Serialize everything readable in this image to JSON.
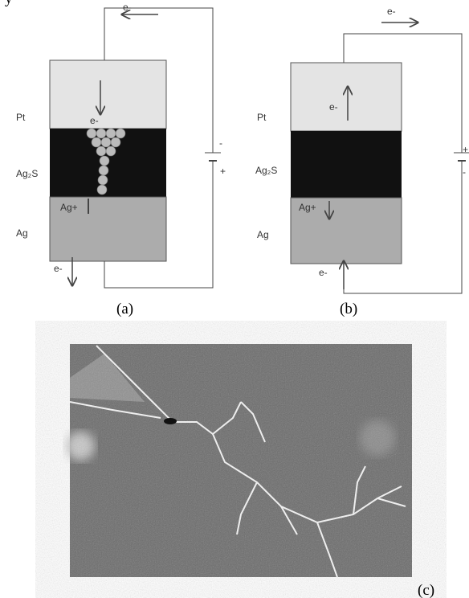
{
  "header_fragment": "y",
  "panels": [
    {
      "label": "(a)",
      "layers": [
        "Pt",
        "Ag₂S",
        "Ag"
      ],
      "electron_labels": [
        "e-",
        "e-",
        "e-"
      ],
      "ion_label": "Ag+",
      "polarity": [
        "-",
        "+"
      ]
    },
    {
      "label": "(b)",
      "layers": [
        "Pt",
        "Ag₂S",
        "Ag"
      ],
      "electron_labels": [
        "e-",
        "e-",
        "e-"
      ],
      "ion_label": "Ag+",
      "polarity": [
        "+",
        "-"
      ]
    }
  ],
  "photo": {
    "label": "(c)"
  }
}
